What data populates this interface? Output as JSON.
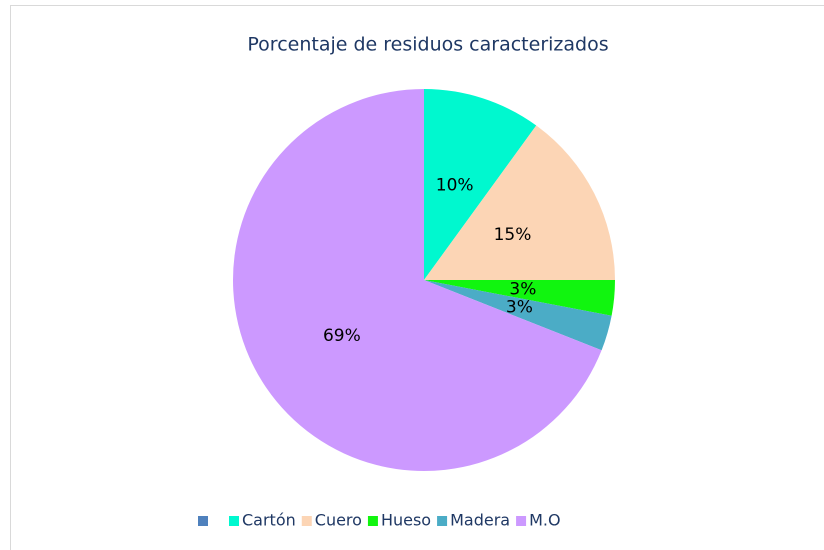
{
  "chart_data": {
    "type": "pie",
    "title": "Porcentaje de residuos caracterizados",
    "categories": [
      null,
      "Cartón",
      "Cuero",
      "Hueso",
      "Madera",
      "M.O"
    ],
    "values": [
      null,
      10,
      15,
      3,
      3,
      69
    ],
    "value_labels": [
      null,
      "10%",
      "15%",
      "3%",
      "3%",
      "69%"
    ],
    "colors": [
      "#4f81bd",
      "#00f8cf",
      "#fcd5b5",
      "#11f50f",
      "#4bacc6",
      "#cc99ff"
    ],
    "legend": "bottom"
  }
}
